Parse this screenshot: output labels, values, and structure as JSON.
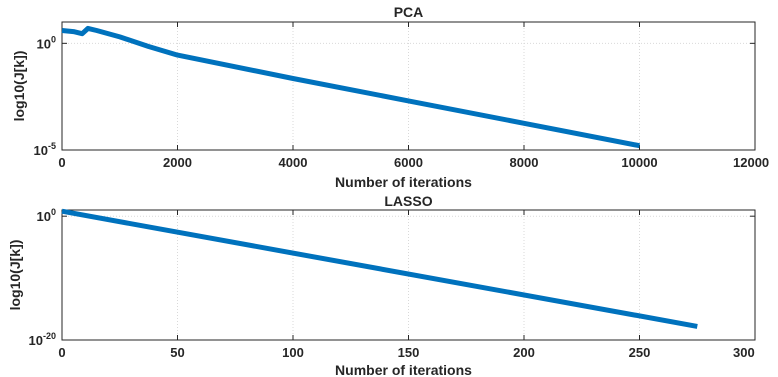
{
  "chart_data": [
    {
      "type": "line",
      "title": "PCA",
      "xlabel": "Number of iterations",
      "ylabel": "log10(J[k])",
      "xlim": [
        0,
        12000
      ],
      "ylim_log10": [
        -5,
        1
      ],
      "yscale": "log",
      "grid": true,
      "line_color": "#0072BD",
      "x_ticks": [
        {
          "value": 0,
          "label": "0"
        },
        {
          "value": 2000,
          "label": "2000"
        },
        {
          "value": 4000,
          "label": "4000"
        },
        {
          "value": 6000,
          "label": "6000"
        },
        {
          "value": 8000,
          "label": "8000"
        },
        {
          "value": 10000,
          "label": "10000"
        },
        {
          "value": 12000,
          "label": "12000"
        }
      ],
      "y_ticks": [
        {
          "exp": 0,
          "base": "10",
          "sup": "0"
        },
        {
          "exp": -5,
          "base": "10",
          "sup": "-5"
        }
      ],
      "series": [
        {
          "x": [
            0,
            200,
            350,
            450,
            600,
            1000,
            1500,
            2000,
            4000,
            6000,
            8000,
            10000
          ],
          "log10_y": [
            0.6,
            0.55,
            0.45,
            0.7,
            0.6,
            0.3,
            -0.15,
            -0.55,
            -1.65,
            -2.7,
            -3.75,
            -4.8
          ]
        }
      ]
    },
    {
      "type": "line",
      "title": "LASSO",
      "xlabel": "Number of iterations",
      "ylabel": "log10(J[k])",
      "xlim": [
        0,
        300
      ],
      "ylim_log10": [
        -20,
        1
      ],
      "yscale": "log",
      "grid": true,
      "line_color": "#0072BD",
      "x_ticks": [
        {
          "value": 0,
          "label": "0"
        },
        {
          "value": 50,
          "label": "50"
        },
        {
          "value": 100,
          "label": "100"
        },
        {
          "value": 150,
          "label": "150"
        },
        {
          "value": 200,
          "label": "200"
        },
        {
          "value": 250,
          "label": "250"
        },
        {
          "value": 300,
          "label": "300"
        }
      ],
      "y_ticks": [
        {
          "exp": 0,
          "base": "10",
          "sup": "0"
        },
        {
          "exp": -20,
          "base": "10",
          "sup": "-20"
        }
      ],
      "series": [
        {
          "x": [
            0,
            275
          ],
          "log10_y": [
            0.8,
            -17.8
          ]
        }
      ]
    }
  ]
}
